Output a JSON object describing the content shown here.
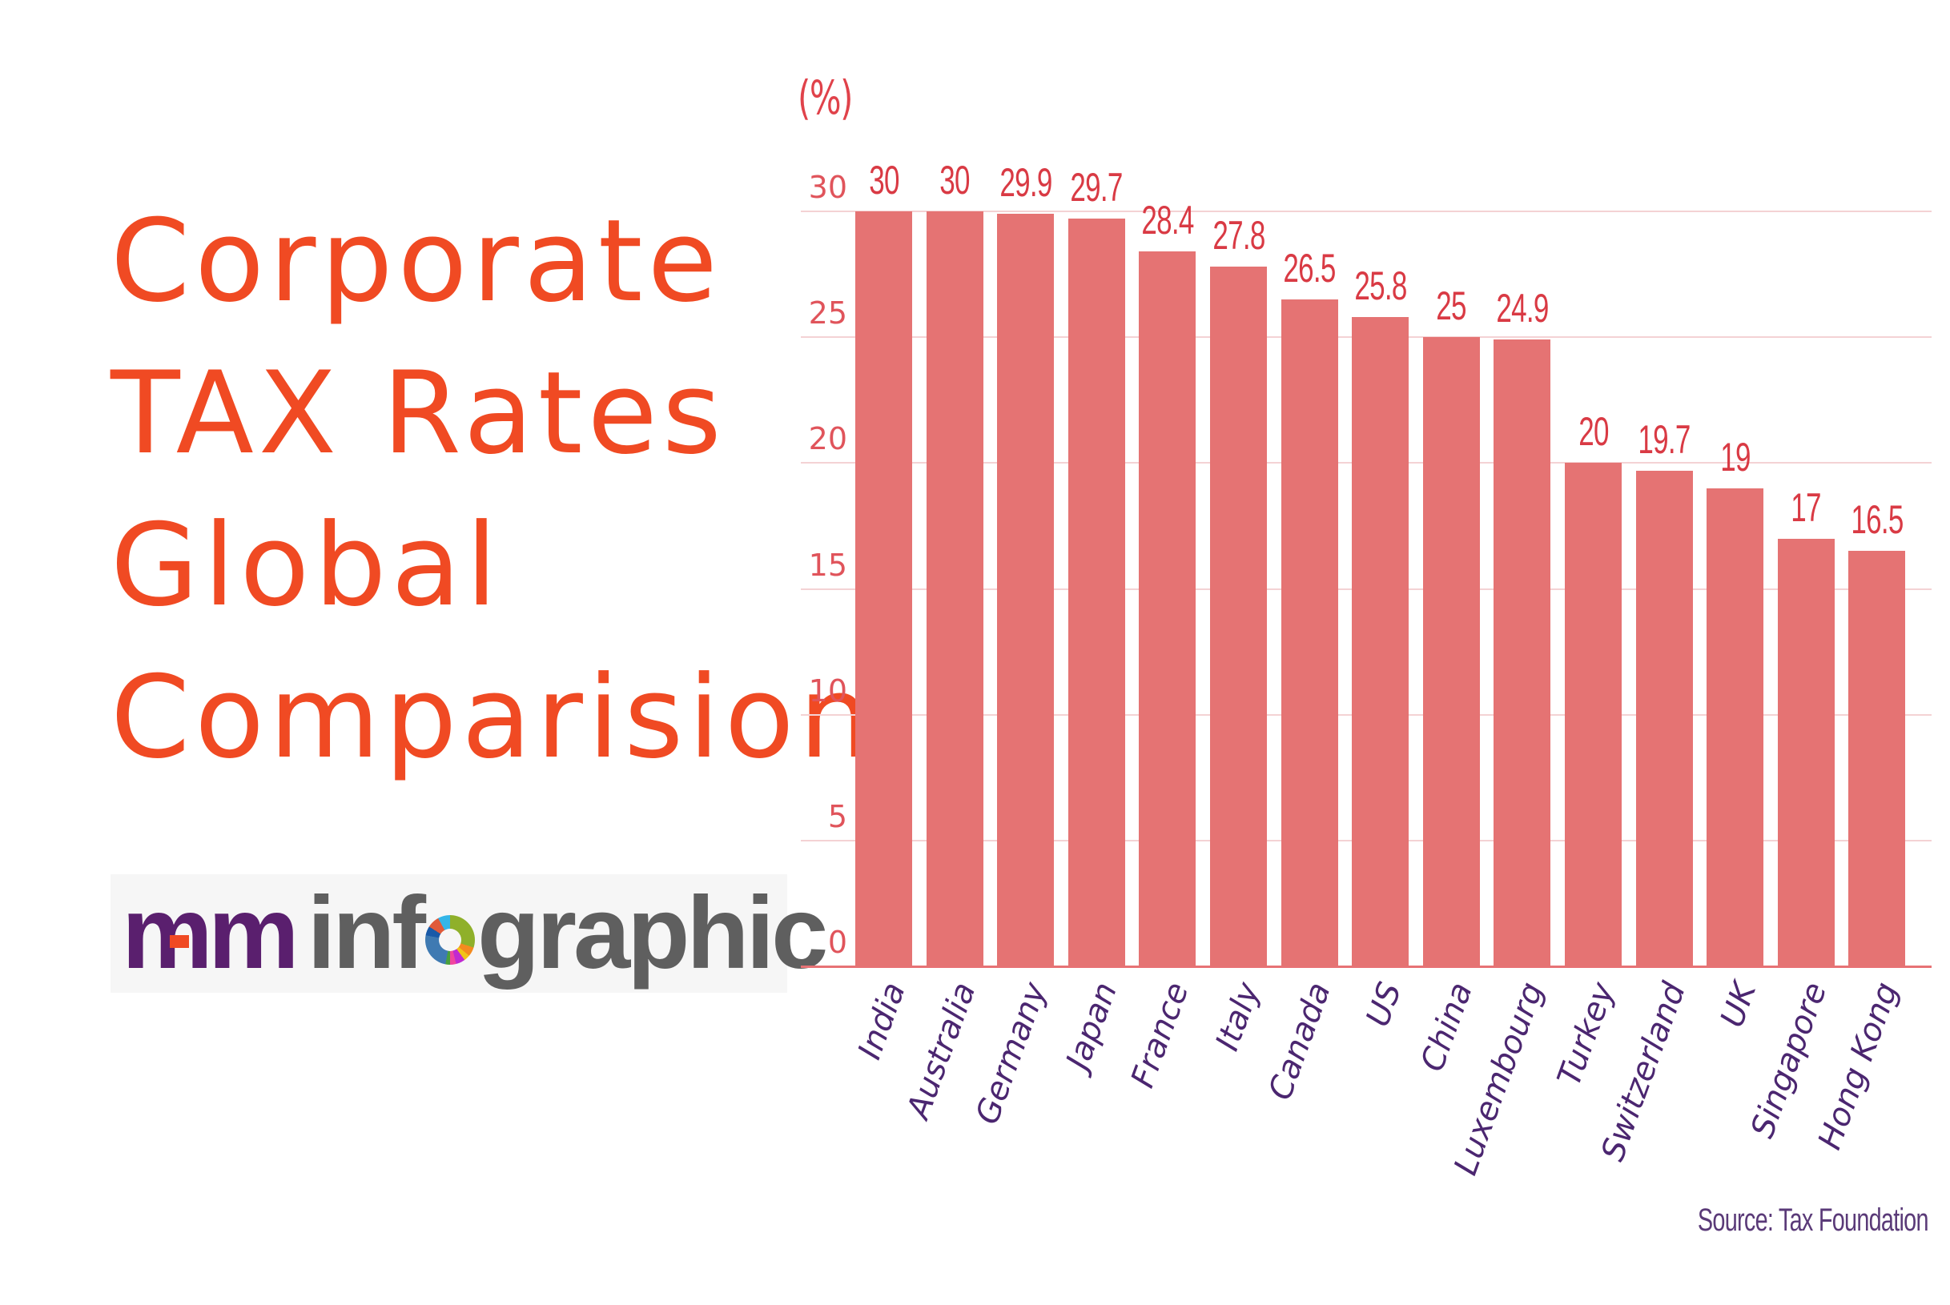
{
  "title": {
    "lines": [
      "Corporate",
      "TAX Rates",
      "Global",
      "Comparision"
    ],
    "color": "#f04a23"
  },
  "logo": {
    "mark": "m-m",
    "word_before": "inf",
    "word_after": "graphic",
    "full_text": "m-m infographic",
    "mark_color": "#5a1f6e",
    "text_color": "#5f5f5f"
  },
  "chart_data": {
    "type": "bar",
    "title": "Corporate TAX Rates Global Comparision",
    "xlabel": "",
    "ylabel": "(%)",
    "ylim": [
      0,
      30
    ],
    "yticks": [
      0,
      5,
      10,
      15,
      20,
      25,
      30
    ],
    "grid": true,
    "legend": null,
    "bar_color": "#e57373",
    "categories": [
      "India",
      "Australia",
      "Germany",
      "Japan",
      "France",
      "Italy",
      "Canada",
      "US",
      "China",
      "Luxembourg",
      "Turkey",
      "Switzerland",
      "UK",
      "Singapore",
      "Hong Kong"
    ],
    "values": [
      30,
      30,
      29.9,
      29.7,
      28.4,
      27.8,
      26.5,
      25.8,
      25,
      24.9,
      20,
      19.7,
      19,
      17,
      16.5
    ],
    "value_labels": [
      "30",
      "30",
      "29.9",
      "29.7",
      "28.4",
      "27.8",
      "26.5",
      "25.8",
      "25",
      "24.9",
      "20",
      "19.7",
      "19",
      "17",
      "16.5"
    ],
    "source": "Source: Tax Foundation"
  }
}
